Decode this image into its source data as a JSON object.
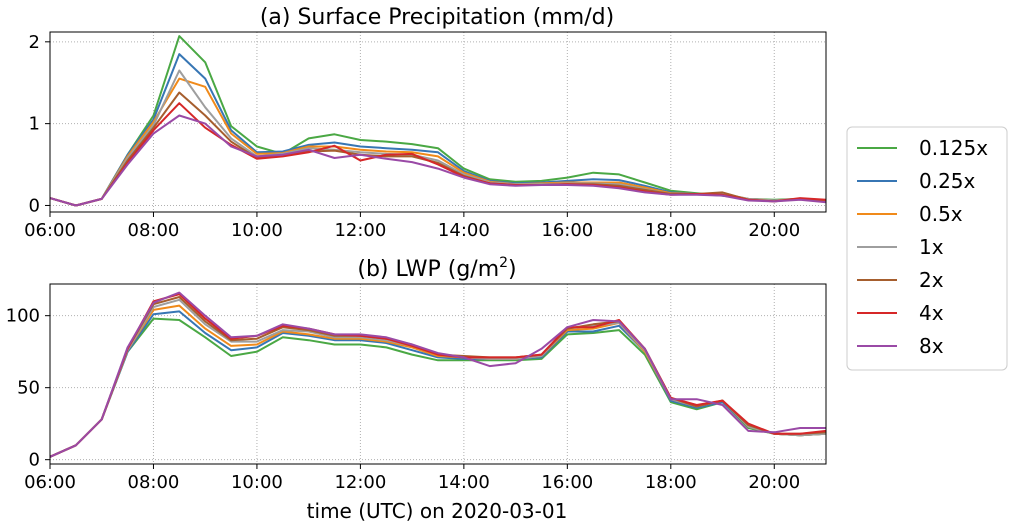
{
  "figure": {
    "xlabel": "time (UTC) on 2020-03-01"
  },
  "legend": {
    "placement": "right",
    "entries": [
      {
        "label": "0.125x",
        "color": "#4aa844"
      },
      {
        "label": "0.25x",
        "color": "#3776b4"
      },
      {
        "label": "0.5x",
        "color": "#f08a1a"
      },
      {
        "label": "1x",
        "color": "#9e9e9e"
      },
      {
        "label": "2x",
        "color": "#a65e2e"
      },
      {
        "label": "4x",
        "color": "#d62728"
      },
      {
        "label": "8x",
        "color": "#9a4aa6"
      }
    ]
  },
  "chart_data": [
    {
      "type": "line",
      "title": "(a) Surface Precipitation (mm/d)",
      "xlim": [
        "06:00",
        "21:00"
      ],
      "ylim": [
        -0.08,
        2.12
      ],
      "xticks": [
        "06:00",
        "08:00",
        "10:00",
        "12:00",
        "14:00",
        "16:00",
        "18:00",
        "20:00"
      ],
      "yticks": [
        0,
        1,
        2
      ],
      "grid": true,
      "x": [
        "06:00",
        "06:30",
        "07:00",
        "07:30",
        "08:00",
        "08:30",
        "09:00",
        "09:30",
        "10:00",
        "10:30",
        "11:00",
        "11:30",
        "12:00",
        "12:30",
        "13:00",
        "13:30",
        "14:00",
        "14:30",
        "15:00",
        "15:30",
        "16:00",
        "16:30",
        "17:00",
        "17:30",
        "18:00",
        "18:30",
        "19:00",
        "19:30",
        "20:00",
        "20:30",
        "21:00"
      ],
      "series": [
        {
          "name": "0.125x",
          "values": [
            0.09,
            0.0,
            0.08,
            0.62,
            1.1,
            2.07,
            1.75,
            0.97,
            0.72,
            0.63,
            0.82,
            0.87,
            0.8,
            0.78,
            0.75,
            0.7,
            0.45,
            0.32,
            0.29,
            0.3,
            0.34,
            0.4,
            0.38,
            0.28,
            0.18,
            0.15,
            0.12,
            0.08,
            0.07,
            0.08,
            0.05
          ]
        },
        {
          "name": "0.25x",
          "values": [
            0.09,
            0.0,
            0.08,
            0.62,
            1.05,
            1.85,
            1.55,
            0.92,
            0.65,
            0.66,
            0.74,
            0.77,
            0.72,
            0.7,
            0.68,
            0.65,
            0.42,
            0.3,
            0.27,
            0.28,
            0.3,
            0.32,
            0.31,
            0.24,
            0.16,
            0.14,
            0.12,
            0.08,
            0.06,
            0.08,
            0.05
          ]
        },
        {
          "name": "0.5x",
          "values": [
            0.09,
            0.0,
            0.08,
            0.6,
            1.02,
            1.55,
            1.45,
            0.88,
            0.63,
            0.64,
            0.72,
            0.72,
            0.68,
            0.66,
            0.65,
            0.6,
            0.4,
            0.29,
            0.26,
            0.27,
            0.28,
            0.28,
            0.28,
            0.22,
            0.15,
            0.14,
            0.14,
            0.08,
            0.06,
            0.08,
            0.06
          ]
        },
        {
          "name": "1x",
          "values": [
            0.09,
            0.0,
            0.08,
            0.58,
            0.98,
            1.65,
            1.2,
            0.82,
            0.6,
            0.63,
            0.7,
            0.68,
            0.65,
            0.63,
            0.62,
            0.55,
            0.38,
            0.28,
            0.26,
            0.26,
            0.27,
            0.27,
            0.26,
            0.2,
            0.14,
            0.14,
            0.14,
            0.08,
            0.06,
            0.08,
            0.06
          ]
        },
        {
          "name": "2x",
          "values": [
            0.09,
            0.0,
            0.08,
            0.55,
            0.95,
            1.38,
            1.1,
            0.78,
            0.58,
            0.61,
            0.66,
            0.67,
            0.62,
            0.6,
            0.6,
            0.52,
            0.36,
            0.27,
            0.25,
            0.25,
            0.26,
            0.26,
            0.24,
            0.19,
            0.14,
            0.14,
            0.16,
            0.07,
            0.05,
            0.08,
            0.06
          ]
        },
        {
          "name": "4x",
          "values": [
            0.09,
            0.0,
            0.08,
            0.52,
            0.92,
            1.25,
            0.95,
            0.74,
            0.57,
            0.6,
            0.65,
            0.73,
            0.55,
            0.62,
            0.63,
            0.5,
            0.35,
            0.27,
            0.25,
            0.25,
            0.26,
            0.25,
            0.22,
            0.17,
            0.13,
            0.14,
            0.13,
            0.07,
            0.05,
            0.09,
            0.07
          ]
        },
        {
          "name": "8x",
          "values": [
            0.09,
            0.0,
            0.08,
            0.5,
            0.88,
            1.1,
            1.0,
            0.72,
            0.6,
            0.62,
            0.68,
            0.58,
            0.62,
            0.57,
            0.53,
            0.45,
            0.34,
            0.26,
            0.24,
            0.25,
            0.25,
            0.24,
            0.21,
            0.16,
            0.13,
            0.13,
            0.12,
            0.06,
            0.05,
            0.07,
            0.04
          ]
        }
      ]
    },
    {
      "type": "line",
      "title": "(b) LWP (g/m",
      "title_superscript": "2",
      "title_suffix": ")",
      "xlabel": "time (UTC) on 2020-03-01",
      "xlim": [
        "06:00",
        "21:00"
      ],
      "ylim": [
        -3,
        122
      ],
      "xticks": [
        "06:00",
        "08:00",
        "10:00",
        "12:00",
        "14:00",
        "16:00",
        "18:00",
        "20:00"
      ],
      "yticks": [
        0,
        50,
        100
      ],
      "grid": true,
      "x": [
        "06:00",
        "06:30",
        "07:00",
        "07:30",
        "08:00",
        "08:30",
        "09:00",
        "09:30",
        "10:00",
        "10:30",
        "11:00",
        "11:30",
        "12:00",
        "12:30",
        "13:00",
        "13:30",
        "14:00",
        "14:30",
        "15:00",
        "15:30",
        "16:00",
        "16:30",
        "17:00",
        "17:30",
        "18:00",
        "18:30",
        "19:00",
        "19:30",
        "20:00",
        "20:30",
        "21:00"
      ],
      "series": [
        {
          "name": "0.125x",
          "values": [
            2,
            10,
            28,
            75,
            98,
            97,
            85,
            72,
            75,
            85,
            83,
            80,
            80,
            78,
            73,
            69,
            69,
            69,
            69,
            70,
            87,
            88,
            90,
            73,
            40,
            35,
            40,
            22,
            18,
            17,
            18
          ]
        },
        {
          "name": "0.25x",
          "values": [
            2,
            10,
            28,
            75,
            101,
            103,
            88,
            76,
            78,
            88,
            86,
            83,
            83,
            81,
            76,
            71,
            70,
            70,
            70,
            71,
            89,
            89,
            93,
            75,
            41,
            36,
            40,
            23,
            18,
            17,
            18
          ]
        },
        {
          "name": "0.5x",
          "values": [
            2,
            10,
            28,
            76,
            104,
            107,
            91,
            79,
            80,
            89,
            87,
            84,
            84,
            82,
            78,
            72,
            71,
            70,
            70,
            72,
            90,
            91,
            95,
            75,
            42,
            37,
            41,
            23,
            18,
            17,
            18
          ]
        },
        {
          "name": "1x",
          "values": [
            2,
            10,
            28,
            76,
            106,
            111,
            94,
            82,
            82,
            90,
            89,
            85,
            85,
            83,
            79,
            73,
            71,
            70,
            70,
            72,
            91,
            93,
            95,
            76,
            42,
            37,
            41,
            23,
            18,
            17,
            18
          ]
        },
        {
          "name": "2x",
          "values": [
            2,
            10,
            28,
            77,
            108,
            113,
            96,
            83,
            84,
            92,
            90,
            86,
            86,
            84,
            80,
            73,
            72,
            71,
            71,
            73,
            91,
            94,
            96,
            77,
            43,
            37,
            41,
            24,
            18,
            18,
            19
          ]
        },
        {
          "name": "4x",
          "values": [
            2,
            10,
            28,
            77,
            110,
            115,
            98,
            84,
            86,
            93,
            91,
            87,
            86,
            84,
            79,
            73,
            71,
            71,
            71,
            73,
            92,
            92,
            97,
            77,
            43,
            38,
            41,
            25,
            18,
            18,
            20
          ]
        },
        {
          "name": "8x",
          "values": [
            2,
            10,
            28,
            78,
            109,
            116,
            100,
            85,
            86,
            94,
            91,
            87,
            87,
            85,
            80,
            74,
            71,
            65,
            67,
            77,
            92,
            97,
            96,
            77,
            42,
            42,
            38,
            20,
            19,
            22,
            22
          ]
        }
      ]
    }
  ]
}
